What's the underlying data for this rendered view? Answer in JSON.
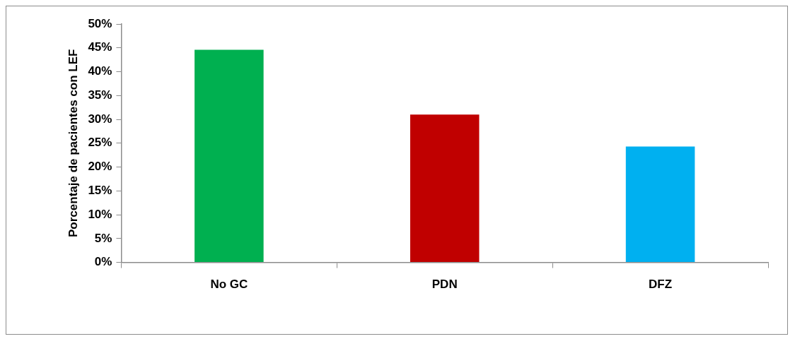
{
  "chart_data": {
    "type": "bar",
    "ylabel": "Porcentaje de pacientes con LEF",
    "categories": [
      "No GC",
      "PDN",
      "DFZ"
    ],
    "values": [
      44.6,
      31.0,
      24.3
    ],
    "colors": [
      "#00b050",
      "#c00000",
      "#00b0f0"
    ],
    "ylim": [
      0,
      50
    ],
    "yticks": [
      {
        "value": 0,
        "label": "0%"
      },
      {
        "value": 5,
        "label": "5%"
      },
      {
        "value": 10,
        "label": "10%"
      },
      {
        "value": 15,
        "label": "15%"
      },
      {
        "value": 20,
        "label": "20%"
      },
      {
        "value": 25,
        "label": "25%"
      },
      {
        "value": 30,
        "label": "30%"
      },
      {
        "value": 35,
        "label": "35%"
      },
      {
        "value": 40,
        "label": "40%"
      },
      {
        "value": 45,
        "label": "45%"
      },
      {
        "value": 50,
        "label": "50%"
      }
    ],
    "grid": false,
    "legend": false
  }
}
